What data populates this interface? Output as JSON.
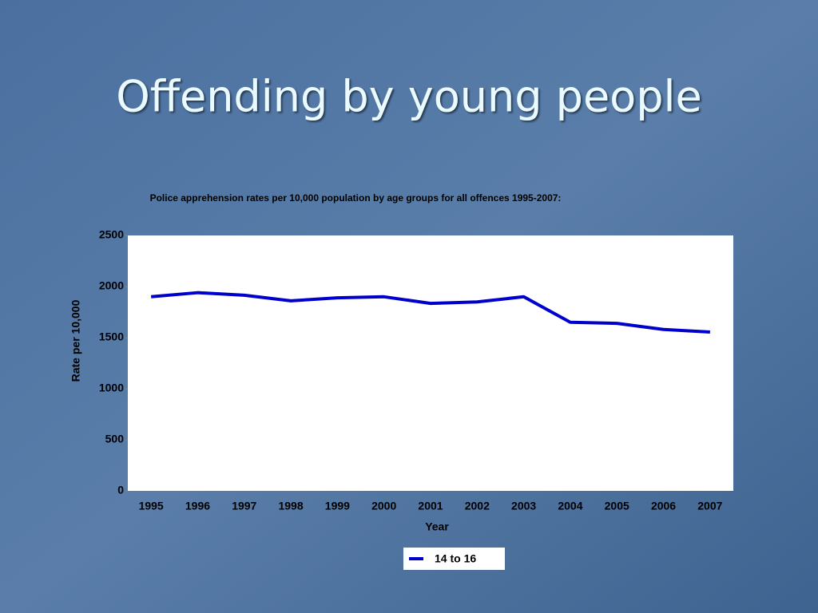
{
  "slide_title": "Offending by young people",
  "chart_data": {
    "type": "line",
    "title": "Police apprehension rates per 10,000 population by  age groups for all offences 1995-2007:",
    "x_label": "Year",
    "y_label": "Rate per 10,000",
    "categories": [
      "1995",
      "1996",
      "1997",
      "1998",
      "1999",
      "2000",
      "2001",
      "2002",
      "2003",
      "2004",
      "2005",
      "2006",
      "2007"
    ],
    "series": [
      {
        "name": "14 to 16",
        "color": "#0000cc",
        "values": [
          1900,
          1940,
          1915,
          1860,
          1890,
          1900,
          1835,
          1850,
          1900,
          1650,
          1640,
          1580,
          1555
        ]
      }
    ],
    "ylim": [
      0,
      2500
    ],
    "yticks": [
      0,
      500,
      1000,
      1500,
      2000,
      2500
    ],
    "grid": false,
    "legend": "bottom"
  }
}
